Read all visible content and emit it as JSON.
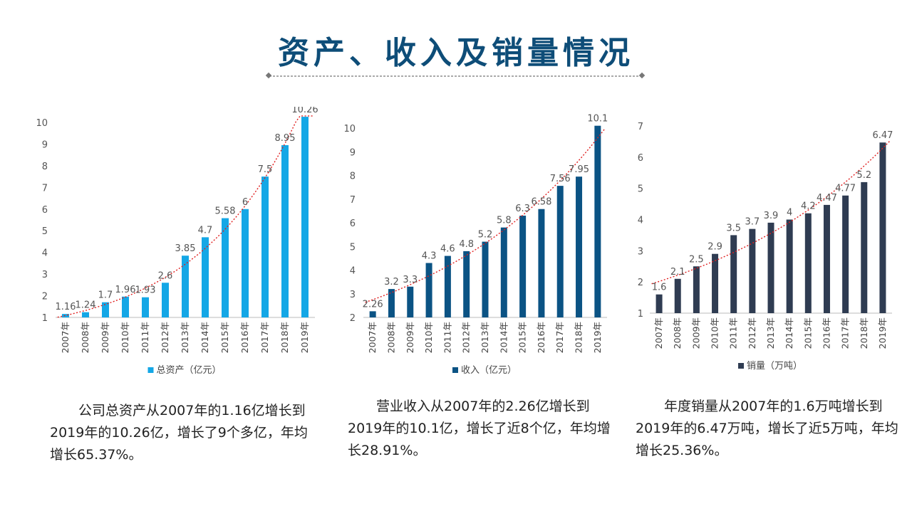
{
  "page": {
    "title": "资产、收入及销量情况",
    "title_color": "#0e4d78"
  },
  "chart_data": [
    {
      "type": "bar",
      "legend": "总资产（亿元）",
      "color": "#14a7e6",
      "categories": [
        "2007年",
        "2008年",
        "2009年",
        "2010年",
        "2011年",
        "2012年",
        "2013年",
        "2014年",
        "2015年",
        "2016年",
        "2017年",
        "2018年",
        "2019年"
      ],
      "values": [
        1.16,
        1.24,
        1.7,
        1.96,
        1.93,
        2.6,
        3.85,
        4.7,
        5.58,
        6,
        7.5,
        8.95,
        10.26
      ],
      "labels": [
        "1.16",
        "1.24",
        "1.7",
        "1.96",
        "1.93",
        "2.6",
        "3.85",
        "4.7",
        "5.58",
        "6",
        "7.5",
        "8.95",
        "10.26"
      ],
      "ylim": [
        1,
        10
      ],
      "yticks": [
        "1",
        "2",
        "3",
        "4",
        "5",
        "6",
        "7",
        "8",
        "9",
        "10"
      ],
      "trendline": "exponential",
      "trend_color": "#e02020",
      "legend_position": "bottom"
    },
    {
      "type": "bar",
      "legend": "收入（亿元）",
      "color": "#0b5384",
      "categories": [
        "2007年",
        "2008年",
        "2009年",
        "2010年",
        "2011年",
        "2012年",
        "2013年",
        "2014年",
        "2015年",
        "2016年",
        "2017年",
        "2018年",
        "2019年"
      ],
      "values": [
        2.26,
        3.2,
        3.3,
        4.3,
        4.6,
        4.8,
        5.2,
        5.8,
        6.3,
        6.58,
        7.56,
        7.95,
        10.1
      ],
      "labels": [
        "2.26",
        "3.2",
        "3.3",
        "4.3",
        "4.6",
        "4.8",
        "5.2",
        "5.8",
        "6.3",
        "6.58",
        "7.56",
        "7.95",
        "10.1"
      ],
      "ylim": [
        2,
        10
      ],
      "yticks": [
        "2",
        "3",
        "4",
        "5",
        "6",
        "7",
        "8",
        "9",
        "10"
      ],
      "trendline": "exponential",
      "trend_color": "#e02020",
      "legend_position": "bottom"
    },
    {
      "type": "bar",
      "legend": "销量（万吨）",
      "color": "#2f3c52",
      "categories": [
        "2007年",
        "2008年",
        "2009年",
        "2010年",
        "2011年",
        "2012年",
        "2013年",
        "2014年",
        "2015年",
        "2016年",
        "2017年",
        "2018年",
        "2019年"
      ],
      "values": [
        1.6,
        2.1,
        2.5,
        2.9,
        3.5,
        3.7,
        3.9,
        4,
        4.2,
        4.47,
        4.77,
        5.2,
        6.47
      ],
      "labels": [
        "1.6",
        "2.1",
        "2.5",
        "2.9",
        "3.5",
        "3.7",
        "3.9",
        "4",
        "4.2",
        "4.47",
        "4.77",
        "5.2",
        "6.47"
      ],
      "ylim": [
        1,
        7
      ],
      "yticks": [
        "1",
        "2",
        "3",
        "4",
        "5",
        "6",
        "7"
      ],
      "trendline": "exponential",
      "trend_color": "#e02020",
      "legend_position": "bottom"
    }
  ],
  "descriptions": [
    {
      "line1": "公司总资产从2007年的1.16亿增长到",
      "line2": "2019年的10.26亿，增长了9个多亿，年均",
      "line3": "增长65.37%。"
    },
    {
      "line1": "营业收入从2007年的2.26亿增长到",
      "line2": "2019年的10.1亿，增长了近8个亿，年均增",
      "line3": "长28.91%。"
    },
    {
      "line1": "年度销量从2007年的1.6万吨增长到",
      "line2": "2019年的6.47万吨，增长了近5万吨，年均",
      "line3": "增长25.36%。"
    }
  ]
}
